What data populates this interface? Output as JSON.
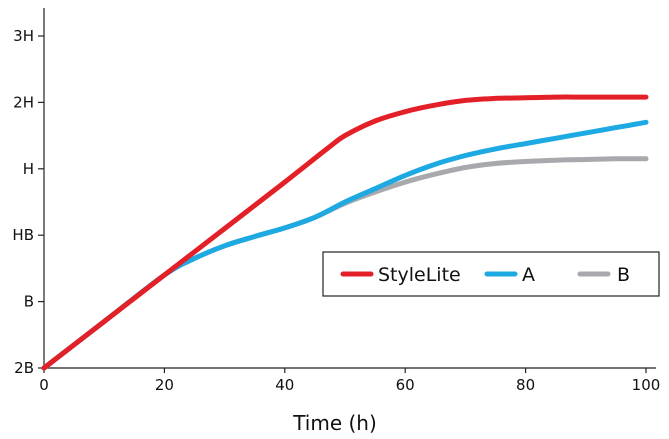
{
  "chart_data": {
    "type": "line",
    "title": "",
    "xlabel": "Time (h)",
    "ylabel": "",
    "xlim": [
      0,
      100
    ],
    "ylim": [
      0,
      5
    ],
    "x_ticks": [
      0,
      20,
      40,
      60,
      80,
      100
    ],
    "y_tick_labels": [
      "2B",
      "B",
      "HB",
      "H",
      "2H",
      "3H"
    ],
    "grid": false,
    "legend_position": "bottom-right",
    "series": [
      {
        "name": "StyleLite",
        "color": "#e32028",
        "x": [
          0,
          10,
          20,
          30,
          40,
          47,
          50,
          55,
          60,
          65,
          70,
          75,
          80,
          85,
          90,
          95,
          100
        ],
        "y": [
          0,
          0.7,
          1.4,
          2.1,
          2.8,
          3.3,
          3.5,
          3.72,
          3.86,
          3.96,
          4.03,
          4.06,
          4.07,
          4.08,
          4.08,
          4.08,
          4.08
        ]
      },
      {
        "name": "A",
        "color": "#1da9e1",
        "x": [
          0,
          10,
          20,
          25,
          30,
          35,
          40,
          45,
          50,
          55,
          60,
          65,
          70,
          75,
          80,
          85,
          90,
          95,
          100
        ],
        "y": [
          0,
          0.7,
          1.4,
          1.65,
          1.84,
          1.98,
          2.11,
          2.27,
          2.5,
          2.7,
          2.9,
          3.07,
          3.2,
          3.3,
          3.38,
          3.46,
          3.54,
          3.62,
          3.7
        ]
      },
      {
        "name": "B",
        "color": "#a7a9ac",
        "x": [
          0,
          10,
          20,
          25,
          30,
          35,
          40,
          45,
          50,
          55,
          60,
          65,
          70,
          75,
          80,
          85,
          90,
          95,
          100
        ],
        "y": [
          0,
          0.7,
          1.4,
          1.65,
          1.84,
          1.98,
          2.11,
          2.27,
          2.48,
          2.65,
          2.8,
          2.92,
          3.02,
          3.08,
          3.11,
          3.13,
          3.14,
          3.15,
          3.15
        ]
      }
    ]
  }
}
